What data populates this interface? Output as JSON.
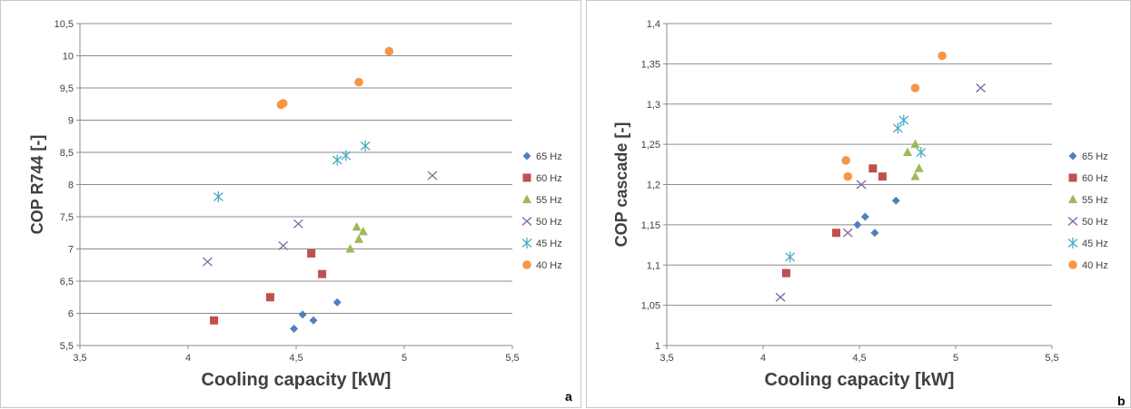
{
  "chart_data": [
    {
      "type": "scatter",
      "panel_label": "a",
      "xlabel": "Cooling capacity [kW]",
      "ylabel": "COP R744 [-]",
      "xlim": [
        3.5,
        5.5
      ],
      "ylim": [
        5.5,
        10.5
      ],
      "x_ticks": [
        "3,5",
        "4",
        "4,5",
        "5",
        "5,5"
      ],
      "y_ticks": [
        "5,5",
        "6",
        "6,5",
        "7",
        "7,5",
        "8",
        "8,5",
        "9",
        "9,5",
        "10",
        "10,5"
      ],
      "grid": "horizontal",
      "legend_position": "right",
      "series": [
        {
          "name": "65 Hz",
          "color": "#4f81bd",
          "marker": "diamond",
          "x": [
            4.49,
            4.53,
            4.58,
            4.69
          ],
          "y": [
            5.76,
            5.98,
            5.89,
            6.17
          ]
        },
        {
          "name": "60 Hz",
          "color": "#c0504d",
          "marker": "square",
          "x": [
            4.12,
            4.38,
            4.57,
            4.62
          ],
          "y": [
            5.89,
            6.25,
            6.93,
            6.61
          ]
        },
        {
          "name": "55 Hz",
          "color": "#9bbb59",
          "marker": "triangle",
          "x": [
            4.75,
            4.78,
            4.79,
            4.81
          ],
          "y": [
            7.0,
            7.34,
            7.15,
            7.27
          ]
        },
        {
          "name": "50 Hz",
          "color": "#8064a2",
          "marker": "x",
          "x": [
            4.09,
            4.44,
            4.51,
            5.13
          ],
          "y": [
            6.8,
            7.05,
            7.39,
            8.14
          ]
        },
        {
          "name": "45 Hz",
          "color": "#4bacc6",
          "marker": "star",
          "x": [
            4.14,
            4.69,
            4.73,
            4.82
          ],
          "y": [
            7.81,
            8.38,
            8.45,
            8.6
          ]
        },
        {
          "name": "40 Hz",
          "color": "#f79646",
          "marker": "circle",
          "x": [
            4.43,
            4.44,
            4.79,
            4.93
          ],
          "y": [
            9.24,
            9.26,
            9.59,
            10.07
          ]
        }
      ]
    },
    {
      "type": "scatter",
      "panel_label": "b",
      "xlabel": "Cooling capacity [kW]",
      "ylabel": "COP cascade [-]",
      "xlim": [
        3.5,
        5.5
      ],
      "ylim": [
        1.0,
        1.4
      ],
      "x_ticks": [
        "3,5",
        "4",
        "4,5",
        "5",
        "5,5"
      ],
      "y_ticks": [
        "1",
        "1,05",
        "1,1",
        "1,15",
        "1,2",
        "1,25",
        "1,3",
        "1,35",
        "1,4"
      ],
      "grid": "horizontal",
      "legend_position": "right",
      "series": [
        {
          "name": "65 Hz",
          "color": "#4f81bd",
          "marker": "diamond",
          "x": [
            4.49,
            4.53,
            4.58,
            4.69
          ],
          "y": [
            1.15,
            1.16,
            1.14,
            1.18
          ]
        },
        {
          "name": "60 Hz",
          "color": "#c0504d",
          "marker": "square",
          "x": [
            4.12,
            4.38,
            4.57,
            4.62
          ],
          "y": [
            1.09,
            1.14,
            1.22,
            1.21
          ]
        },
        {
          "name": "55 Hz",
          "color": "#9bbb59",
          "marker": "triangle",
          "x": [
            4.75,
            4.79,
            4.79,
            4.81
          ],
          "y": [
            1.24,
            1.21,
            1.25,
            1.22
          ]
        },
        {
          "name": "50 Hz",
          "color": "#8064a2",
          "marker": "x",
          "x": [
            4.09,
            4.44,
            4.51,
            5.13
          ],
          "y": [
            1.06,
            1.14,
            1.2,
            1.32
          ]
        },
        {
          "name": "45 Hz",
          "color": "#4bacc6",
          "marker": "star",
          "x": [
            4.14,
            4.7,
            4.73,
            4.82
          ],
          "y": [
            1.11,
            1.27,
            1.28,
            1.24
          ]
        },
        {
          "name": "40 Hz",
          "color": "#f79646",
          "marker": "circle",
          "x": [
            4.43,
            4.44,
            4.79,
            4.93
          ],
          "y": [
            1.23,
            1.21,
            1.32,
            1.36
          ]
        }
      ]
    }
  ]
}
